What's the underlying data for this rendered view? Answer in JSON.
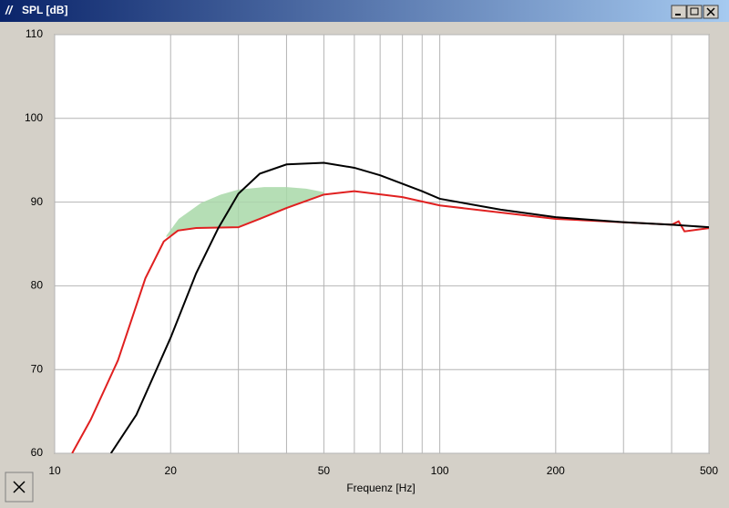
{
  "chart_data": {
    "type": "line",
    "title": "SPL [dB]",
    "x_label": "Frequenz [Hz]",
    "xscale": "log",
    "xlim": [
      10,
      500
    ],
    "xticks": [
      10,
      20,
      50,
      100,
      200,
      500
    ],
    "x_minor_grid": [
      30,
      40,
      60,
      70,
      80,
      90,
      300,
      400
    ],
    "ylim": [
      60,
      110
    ],
    "yticks": [
      60,
      70,
      80,
      90,
      100,
      110
    ],
    "grid": true,
    "series": [
      {
        "color": "#000000",
        "x": [
          14.0,
          16.3,
          20,
          23.3,
          26.6,
          30,
          34.1,
          40,
          50,
          60,
          70,
          90,
          100,
          144,
          200,
          300,
          400,
          500
        ],
        "values": [
          60,
          64.6,
          73.8,
          81.5,
          86.9,
          91.0,
          93.4,
          94.5,
          94.7,
          94.1,
          93.2,
          91.3,
          90.4,
          89.1,
          88.2,
          87.6,
          87.3,
          87.0
        ]
      },
      {
        "color": "#e02020",
        "x": [
          11.1,
          12.4,
          14.6,
          17.2,
          19.2,
          20.9,
          23.3,
          30,
          34.1,
          40,
          50,
          60,
          80,
          100,
          200,
          400,
          417,
          432,
          500
        ],
        "values": [
          60,
          64.0,
          71.1,
          80.9,
          85.3,
          86.6,
          86.9,
          87.0,
          88.0,
          89.3,
          90.9,
          91.3,
          90.6,
          89.6,
          88.0,
          87.3,
          87.7,
          86.5,
          86.9
        ]
      }
    ],
    "fill": {
      "color": "#a8d8a8",
      "x": [
        19.5,
        21,
        24,
        27,
        30,
        35,
        40,
        45,
        50
      ],
      "upper": [
        86.0,
        88.0,
        89.9,
        90.9,
        91.5,
        91.8,
        91.8,
        91.6,
        91.2
      ],
      "lower": [
        85.8,
        86.6,
        86.9,
        87.0,
        87.0,
        88.2,
        89.3,
        90.2,
        90.9
      ]
    }
  }
}
